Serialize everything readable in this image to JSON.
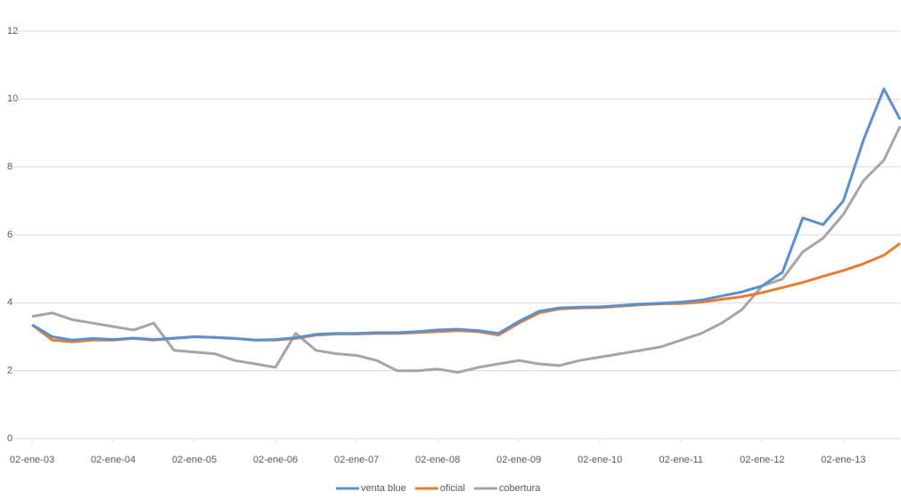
{
  "chart_data": {
    "type": "line",
    "x": [
      2003,
      2003.25,
      2003.5,
      2003.75,
      2004,
      2004.25,
      2004.5,
      2004.75,
      2005,
      2005.25,
      2005.5,
      2005.75,
      2006,
      2006.25,
      2006.5,
      2006.75,
      2007,
      2007.25,
      2007.5,
      2007.75,
      2008,
      2008.25,
      2008.5,
      2008.75,
      2009,
      2009.25,
      2009.5,
      2009.75,
      2010,
      2010.25,
      2010.5,
      2010.75,
      2011,
      2011.25,
      2011.5,
      2011.75,
      2012,
      2012.25,
      2012.5,
      2012.75,
      2013,
      2013.25,
      2013.5,
      2013.7
    ],
    "series": [
      {
        "name": "venta blue",
        "color": "#5b8fd0",
        "values": [
          3.35,
          3.0,
          2.9,
          2.95,
          2.92,
          2.96,
          2.92,
          2.96,
          3.0,
          2.98,
          2.95,
          2.9,
          2.92,
          2.97,
          3.07,
          3.1,
          3.1,
          3.12,
          3.12,
          3.15,
          3.2,
          3.22,
          3.18,
          3.1,
          3.45,
          3.75,
          3.85,
          3.87,
          3.88,
          3.92,
          3.96,
          3.99,
          4.02,
          4.08,
          4.2,
          4.32,
          4.5,
          4.9,
          6.5,
          6.3,
          7.0,
          8.8,
          10.3,
          9.4
        ]
      },
      {
        "name": "oficial",
        "color": "#e87d2f",
        "values": [
          3.35,
          2.9,
          2.85,
          2.9,
          2.9,
          2.95,
          2.9,
          2.95,
          3.0,
          2.98,
          2.95,
          2.9,
          2.9,
          2.95,
          3.05,
          3.08,
          3.08,
          3.1,
          3.1,
          3.12,
          3.15,
          3.18,
          3.15,
          3.05,
          3.4,
          3.7,
          3.82,
          3.85,
          3.86,
          3.9,
          3.94,
          3.97,
          3.98,
          4.02,
          4.1,
          4.18,
          4.3,
          4.45,
          4.6,
          4.78,
          4.95,
          5.15,
          5.4,
          5.75
        ]
      },
      {
        "name": "cobertura",
        "color": "#a5a5a5",
        "values": [
          3.6,
          3.7,
          3.5,
          3.4,
          3.3,
          3.2,
          3.4,
          2.6,
          2.55,
          2.5,
          2.3,
          2.2,
          2.1,
          3.1,
          2.6,
          2.5,
          2.45,
          2.3,
          2.0,
          2.0,
          2.05,
          1.95,
          2.1,
          2.2,
          2.3,
          2.2,
          2.15,
          2.3,
          2.4,
          2.5,
          2.6,
          2.7,
          2.9,
          3.1,
          3.4,
          3.8,
          4.5,
          4.7,
          5.5,
          5.9,
          6.6,
          7.6,
          8.2,
          9.2
        ]
      }
    ],
    "xlim": [
      2003,
      2013.7
    ],
    "xticks": [
      {
        "value": 2003,
        "label": "02-ene-03"
      },
      {
        "value": 2004,
        "label": "02-ene-04"
      },
      {
        "value": 2005,
        "label": "02-ene-05"
      },
      {
        "value": 2006,
        "label": "02-ene-06"
      },
      {
        "value": 2007,
        "label": "02-ene-07"
      },
      {
        "value": 2008,
        "label": "02-ene-08"
      },
      {
        "value": 2009,
        "label": "02-ene-09"
      },
      {
        "value": 2010,
        "label": "02-ene-10"
      },
      {
        "value": 2011,
        "label": "02-ene-11"
      },
      {
        "value": 2012,
        "label": "02-ene-12"
      },
      {
        "value": 2013,
        "label": "02-ene-13"
      }
    ],
    "ylim": [
      0,
      12
    ],
    "yticks": [
      0,
      2,
      4,
      6,
      8,
      10,
      12
    ],
    "grid": true,
    "legend": "bottom"
  }
}
